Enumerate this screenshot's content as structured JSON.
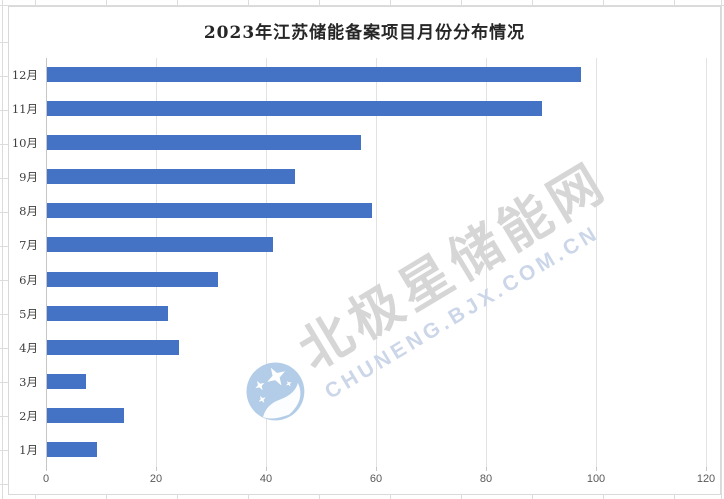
{
  "chart_data": {
    "type": "bar",
    "orientation": "horizontal",
    "title": "2023年江苏储能备案项目月份分布情况",
    "categories": [
      "12月",
      "11月",
      "10月",
      "9月",
      "8月",
      "7月",
      "6月",
      "5月",
      "4月",
      "3月",
      "2月",
      "1月"
    ],
    "values": [
      97,
      90,
      57,
      45,
      59,
      41,
      31,
      22,
      24,
      7,
      14,
      9
    ],
    "category_order_note": "listed top-to-bottom as displayed",
    "xlabel": "",
    "ylabel": "",
    "xlim": [
      0,
      120
    ],
    "x_ticks": [
      0,
      20,
      40,
      60,
      80,
      100,
      120
    ],
    "grid": "vertical",
    "legend": "none",
    "bar_color": "#4472c4",
    "gridline_color": "#e2e2e2",
    "axis_line_color": "#c6c6c6"
  },
  "watermark": {
    "text": "北极星储能网",
    "subtext": "CHUNENG.BJX.COM.CN",
    "text_color": "#d6d6d6",
    "subtext_color": "#ccd6e9",
    "logo": "bjx-star-cloud-logo",
    "logo_color": "#b3cde8"
  }
}
